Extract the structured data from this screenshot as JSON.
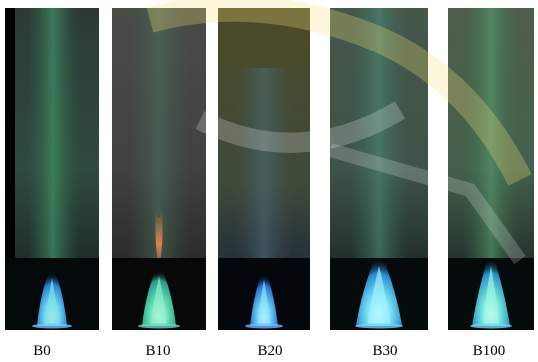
{
  "panels": [
    {
      "label": "B0"
    },
    {
      "label": "B10"
    },
    {
      "label": "B20"
    },
    {
      "label": "B30"
    },
    {
      "label": "B100"
    }
  ]
}
